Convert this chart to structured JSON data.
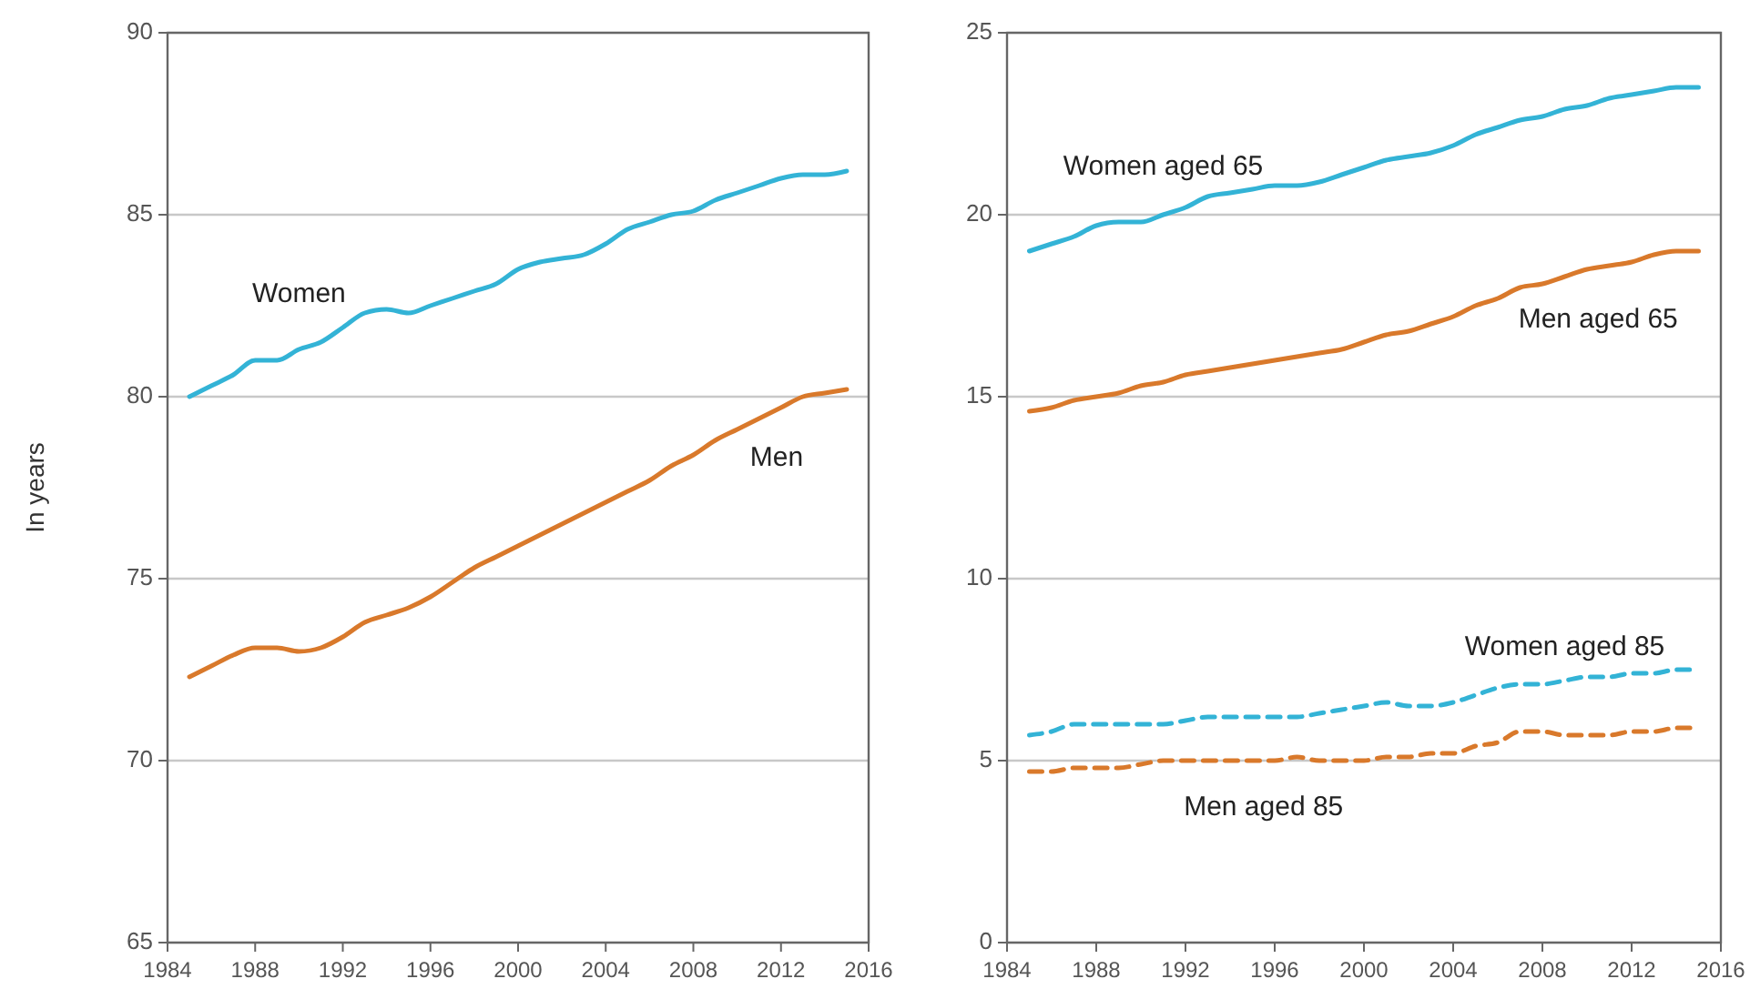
{
  "chart_data": [
    {
      "type": "line",
      "ylabel": "In years",
      "x": [
        1985,
        1986,
        1987,
        1988,
        1989,
        1990,
        1991,
        1992,
        1993,
        1994,
        1995,
        1996,
        1997,
        1998,
        1999,
        2000,
        2001,
        2002,
        2003,
        2004,
        2005,
        2006,
        2007,
        2008,
        2009,
        2010,
        2011,
        2012,
        2013,
        2014,
        2015
      ],
      "xlim": [
        1984,
        2016
      ],
      "xticks": [
        1984,
        1988,
        1992,
        1996,
        2000,
        2004,
        2008,
        2012,
        2016
      ],
      "ylim": [
        65,
        90
      ],
      "yticks": [
        65,
        70,
        75,
        80,
        85,
        90
      ],
      "grid": "y",
      "series": [
        {
          "name": "Women",
          "color": "#33b3d6",
          "values": [
            80.0,
            80.3,
            80.6,
            81.0,
            81.0,
            81.3,
            81.5,
            81.9,
            82.3,
            82.4,
            82.3,
            82.5,
            82.7,
            82.9,
            83.1,
            83.5,
            83.7,
            83.8,
            83.9,
            84.2,
            84.6,
            84.8,
            85.0,
            85.1,
            85.4,
            85.6,
            85.8,
            86.0,
            86.1,
            86.1,
            86.2
          ]
        },
        {
          "name": "Men",
          "color": "#d9792b",
          "values": [
            72.3,
            72.6,
            72.9,
            73.1,
            73.1,
            73.0,
            73.1,
            73.4,
            73.8,
            74.0,
            74.2,
            74.5,
            74.9,
            75.3,
            75.6,
            75.9,
            76.2,
            76.5,
            76.8,
            77.1,
            77.4,
            77.7,
            78.1,
            78.4,
            78.8,
            79.1,
            79.4,
            79.7,
            80.0,
            80.1,
            80.2
          ]
        }
      ]
    },
    {
      "type": "line",
      "x": [
        1985,
        1986,
        1987,
        1988,
        1989,
        1990,
        1991,
        1992,
        1993,
        1994,
        1995,
        1996,
        1997,
        1998,
        1999,
        2000,
        2001,
        2002,
        2003,
        2004,
        2005,
        2006,
        2007,
        2008,
        2009,
        2010,
        2011,
        2012,
        2013,
        2014,
        2015
      ],
      "xlim": [
        1984,
        2016
      ],
      "xticks": [
        1984,
        1988,
        1992,
        1996,
        2000,
        2004,
        2008,
        2012,
        2016
      ],
      "ylim": [
        0,
        25
      ],
      "yticks": [
        0,
        5,
        10,
        15,
        20,
        25
      ],
      "grid": "y",
      "series": [
        {
          "name": "Women aged 65",
          "color": "#33b3d6",
          "line_style": "solid",
          "values": [
            19.0,
            19.2,
            19.4,
            19.7,
            19.8,
            19.8,
            20.0,
            20.2,
            20.5,
            20.6,
            20.7,
            20.8,
            20.8,
            20.9,
            21.1,
            21.3,
            21.5,
            21.6,
            21.7,
            21.9,
            22.2,
            22.4,
            22.6,
            22.7,
            22.9,
            23.0,
            23.2,
            23.3,
            23.4,
            23.5,
            23.5
          ]
        },
        {
          "name": "Men aged 65",
          "color": "#d9792b",
          "line_style": "solid",
          "values": [
            14.6,
            14.7,
            14.9,
            15.0,
            15.1,
            15.3,
            15.4,
            15.6,
            15.7,
            15.8,
            15.9,
            16.0,
            16.1,
            16.2,
            16.3,
            16.5,
            16.7,
            16.8,
            17.0,
            17.2,
            17.5,
            17.7,
            18.0,
            18.1,
            18.3,
            18.5,
            18.6,
            18.7,
            18.9,
            19.0,
            19.0
          ]
        },
        {
          "name": "Women aged 85",
          "color": "#33b3d6",
          "line_style": "dashed",
          "values": [
            5.7,
            5.8,
            6.0,
            6.0,
            6.0,
            6.0,
            6.0,
            6.1,
            6.2,
            6.2,
            6.2,
            6.2,
            6.2,
            6.3,
            6.4,
            6.5,
            6.6,
            6.5,
            6.5,
            6.6,
            6.8,
            7.0,
            7.1,
            7.1,
            7.2,
            7.3,
            7.3,
            7.4,
            7.4,
            7.5,
            7.5
          ]
        },
        {
          "name": "Men aged 85",
          "color": "#d9792b",
          "line_style": "dashed",
          "values": [
            4.7,
            4.7,
            4.8,
            4.8,
            4.8,
            4.9,
            5.0,
            5.0,
            5.0,
            5.0,
            5.0,
            5.0,
            5.1,
            5.0,
            5.0,
            5.0,
            5.1,
            5.1,
            5.2,
            5.2,
            5.4,
            5.5,
            5.8,
            5.8,
            5.7,
            5.7,
            5.7,
            5.8,
            5.8,
            5.9,
            5.9
          ]
        }
      ]
    }
  ]
}
